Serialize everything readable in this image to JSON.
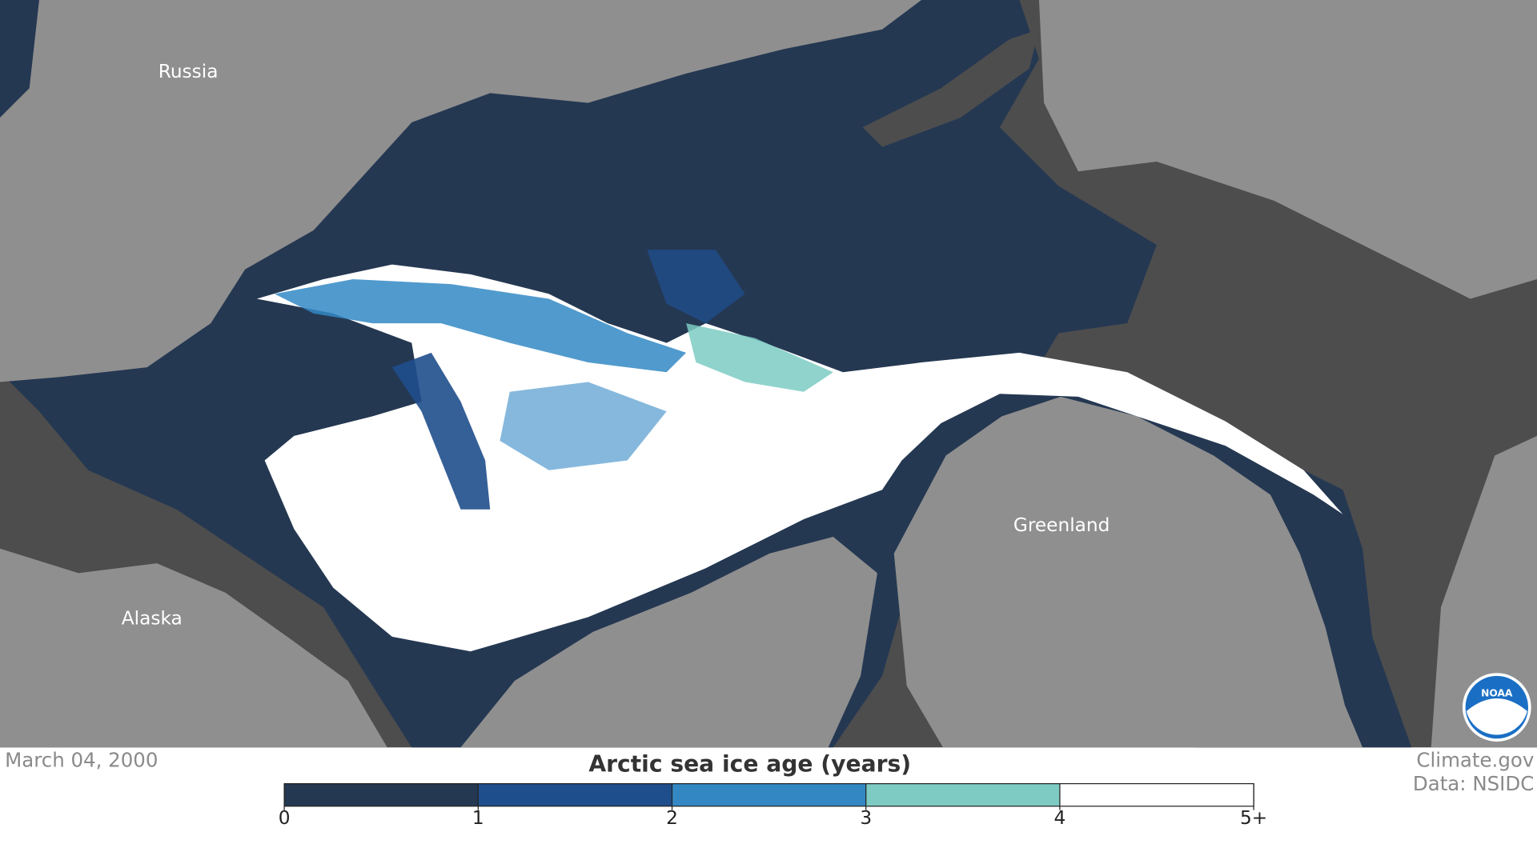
{
  "map": {
    "labels": [
      "Russia",
      "Alaska",
      "Greenland"
    ],
    "logo": "NOAA"
  },
  "date": "March 04, 2000",
  "legend": {
    "title": "Arctic sea ice age (years)",
    "ticks": [
      0,
      1,
      2,
      3,
      4,
      {
        "value": 5,
        "label": "5+"
      }
    ],
    "colors": [
      "#253852",
      "#1f4e8c",
      "#3388c4",
      "#7dcbc3",
      "#ffffff"
    ]
  },
  "credits": [
    "Climate.gov",
    "Data: NSIDC"
  ]
}
